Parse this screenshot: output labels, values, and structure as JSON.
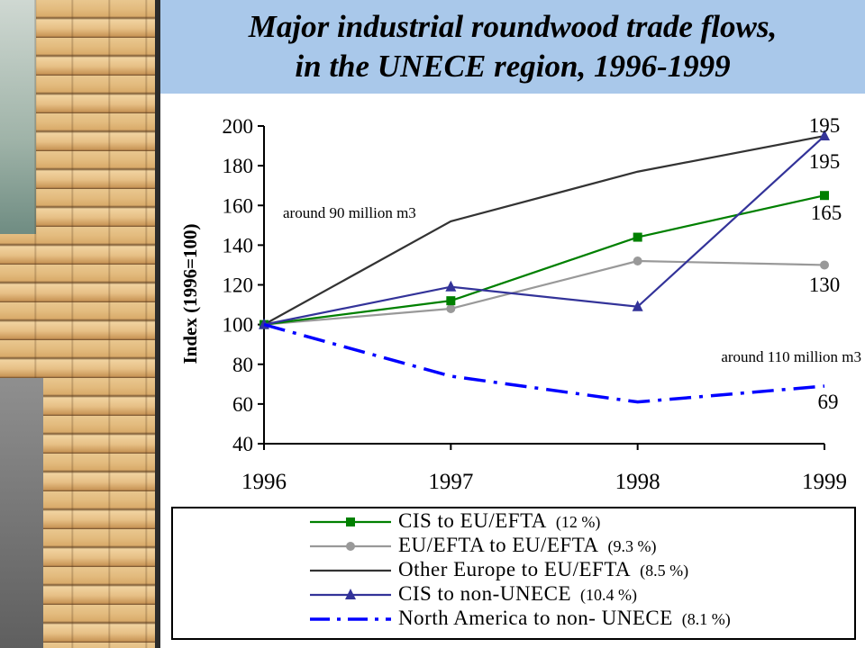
{
  "title": {
    "line1": "Major industrial roundwood trade flows,",
    "line2": "in the UNECE region, 1996-1999"
  },
  "colors": {
    "banner": "#a9c8ea",
    "cis_eu": "#008000",
    "eu_eu": "#999999",
    "other_eu": "#333333",
    "cis_non": "#333399",
    "na_non": "#0000ff"
  },
  "chart_data": {
    "type": "line",
    "x": [
      "1996",
      "1997",
      "1998",
      "1999"
    ],
    "ylabel": "Index (1996=100)",
    "ylim": [
      40,
      200
    ],
    "yticks": [
      "200",
      "180",
      "160",
      "140",
      "120",
      "100",
      "80",
      "60",
      "40"
    ],
    "grid": false,
    "legend_position": "bottom",
    "series": [
      {
        "name": "CIS to EU/EFTA",
        "share": "(12 %)",
        "values": [
          100,
          112,
          144,
          165
        ],
        "marker": "square",
        "dash": "solid"
      },
      {
        "name": "EU/EFTA to EU/EFTA",
        "share": "(9.3 %)",
        "values": [
          100,
          108,
          132,
          130
        ],
        "marker": "circle",
        "dash": "solid"
      },
      {
        "name": "Other Europe to EU/EFTA",
        "share": "(8.5 %)",
        "values": [
          100,
          152,
          177,
          195
        ],
        "marker": "none",
        "dash": "solid"
      },
      {
        "name": "CIS to non-UNECE",
        "share": "(10.4 %)",
        "values": [
          100,
          119,
          109,
          195
        ],
        "marker": "triangle",
        "dash": "solid"
      },
      {
        "name": "North America to non- UNECE",
        "share": "(8.1 %)",
        "values": [
          100,
          74,
          61,
          69
        ],
        "marker": "none",
        "dash": "dashdot"
      }
    ],
    "annotations": {
      "left_note": "around 90 million m3",
      "right_note": "around 110 million m3",
      "end_label_top": "195",
      "end_label_cis_non": "195",
      "end_label_cis_eu": "165",
      "end_label_eu_eu": "130",
      "end_label_na": "69"
    }
  }
}
